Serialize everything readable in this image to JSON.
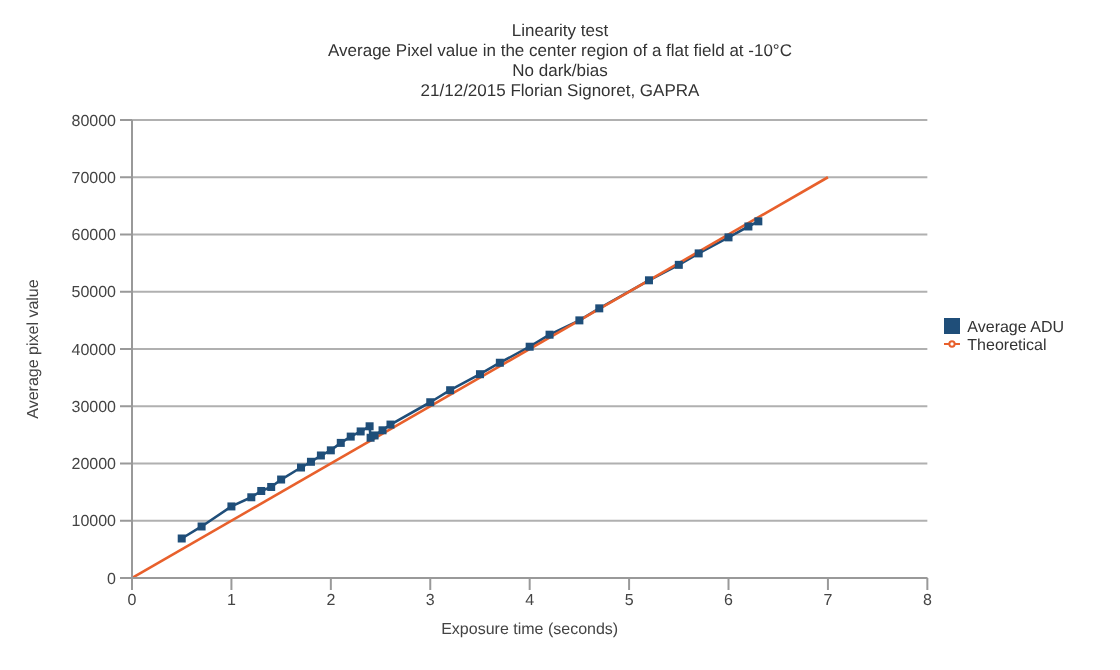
{
  "chart_data": {
    "type": "line",
    "title": "Linearity test",
    "subtitle": "Average Pixel value in the center region of a flat field at -10°C\nNo dark/bias\n21/12/2015 Florian Signoret, GAPRA",
    "xlabel": "Exposure time (seconds)",
    "ylabel": "Average pixel value",
    "xlim": [
      0,
      8
    ],
    "xticks": [
      0,
      1,
      2,
      3,
      4,
      5,
      6,
      7,
      8
    ],
    "ylim": [
      0,
      80000
    ],
    "yticks": [
      0,
      10000,
      20000,
      30000,
      40000,
      50000,
      60000,
      70000,
      80000
    ],
    "grid": "y",
    "legend": "right",
    "series": [
      {
        "name": "Average ADU",
        "color": "#1f4e79",
        "marker": "square",
        "x": [
          0.5,
          0.7,
          1.0,
          1.2,
          1.3,
          1.4,
          1.5,
          1.7,
          1.8,
          1.9,
          2.0,
          2.1,
          2.2,
          2.3,
          2.39,
          2.4,
          2.44,
          2.52,
          2.6,
          3.0,
          3.2,
          3.5,
          3.7,
          4.0,
          4.2,
          4.5,
          4.7,
          5.2,
          5.5,
          5.7,
          6.0,
          6.2,
          6.3
        ],
        "values": [
          6900,
          9000,
          12500,
          14100,
          15200,
          15900,
          17200,
          19300,
          20300,
          21400,
          22300,
          23600,
          24700,
          25600,
          26500,
          24500,
          24900,
          25800,
          26800,
          30700,
          32800,
          35600,
          37600,
          40400,
          42500,
          45000,
          47100,
          52000,
          54700,
          56700,
          59500,
          61400,
          62300
        ]
      },
      {
        "name": "Theoretical",
        "color": "#e8602c",
        "marker": "none",
        "x": [
          0,
          7
        ],
        "values": [
          0,
          70000
        ]
      }
    ]
  }
}
